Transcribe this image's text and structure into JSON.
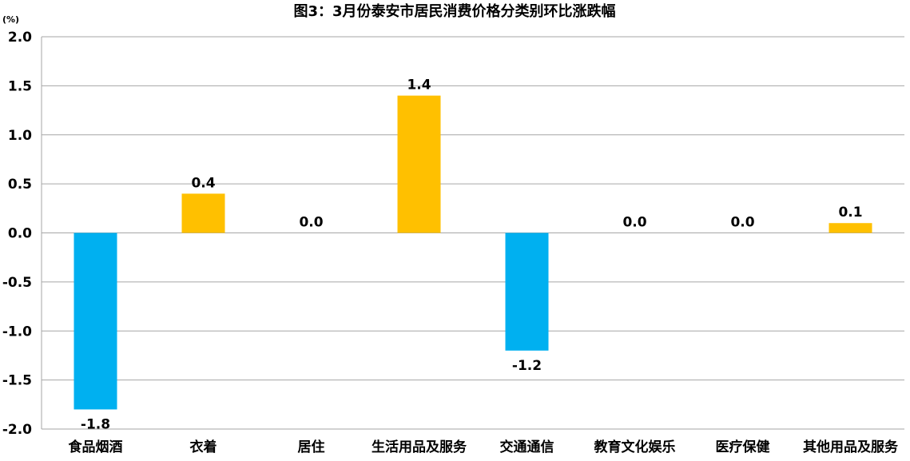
{
  "chart_data": {
    "type": "bar",
    "title": "图3：3月份泰安市居民消费价格分类别环比涨跌幅",
    "unit_label": "(%)",
    "categories": [
      "食品烟酒",
      "衣着",
      "居住",
      "生活用品及服务",
      "交通通信",
      "教育文化娱乐",
      "医疗保健",
      "其他用品及服务"
    ],
    "values": [
      -1.8,
      0.4,
      0.0,
      1.4,
      -1.2,
      0.0,
      0.0,
      0.1
    ],
    "data_labels": [
      "-1.8",
      "0.4",
      "0.0",
      "1.4",
      "-1.2",
      "0.0",
      "0.0",
      "0.1"
    ],
    "ylim": [
      -2.0,
      2.0
    ],
    "yticks": [
      2.0,
      1.5,
      1.0,
      0.5,
      0.0,
      -0.5,
      -1.0,
      -1.5,
      -2.0
    ],
    "ytick_labels": [
      "2.0",
      "1.5",
      "1.0",
      "0.5",
      "0.0",
      "-0.5",
      "-1.0",
      "-1.5",
      "-2.0"
    ],
    "grid": true,
    "legend": "none",
    "colors": {
      "positive": "#FFC000",
      "negative": "#00B0F0"
    }
  }
}
